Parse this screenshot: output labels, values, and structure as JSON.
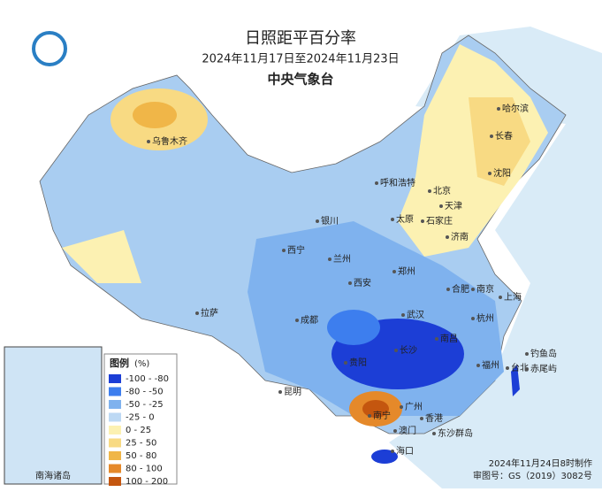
{
  "header": {
    "title": "日照距平百分率",
    "period": "2024年11月17日至2024年11月23日",
    "issuer": "中央气象台"
  },
  "legend": {
    "title": "图例",
    "unit": "(%)",
    "items": [
      {
        "label": "-100 - -80",
        "color": "#1c3ed6"
      },
      {
        "label": "-80 - -50",
        "color": "#3d7eee"
      },
      {
        "label": "-50 - -25",
        "color": "#7fb2ee"
      },
      {
        "label": "-25 - 0",
        "color": "#bdd9f4"
      },
      {
        "label": "0 - 25",
        "color": "#fcf1b2"
      },
      {
        "label": "25 - 50",
        "color": "#f8da83"
      },
      {
        "label": "50 - 80",
        "color": "#f0b648"
      },
      {
        "label": "80 - 100",
        "color": "#e5892a"
      },
      {
        "label": "100 - 200",
        "color": "#c4560f"
      }
    ]
  },
  "cities": [
    "乌鲁木齐",
    "哈尔滨",
    "长春",
    "沈阳",
    "呼和浩特",
    "北京",
    "天津",
    "银川",
    "太原",
    "石家庄",
    "济南",
    "西宁",
    "兰州",
    "郑州",
    "西安",
    "合肥",
    "南京",
    "上海",
    "拉萨",
    "成都",
    "武汉",
    "杭州",
    "长沙",
    "南昌",
    "福州",
    "台北",
    "贵阳",
    "昆明",
    "南宁",
    "广州",
    "香港",
    "澳门",
    "海口",
    "东沙群岛",
    "钓鱼岛",
    "赤尾屿"
  ],
  "inset": {
    "label": "南海诸岛"
  },
  "footer": {
    "made": "2024年11月24日8时制作",
    "approval": "审图号：GS（2019）3082号"
  }
}
